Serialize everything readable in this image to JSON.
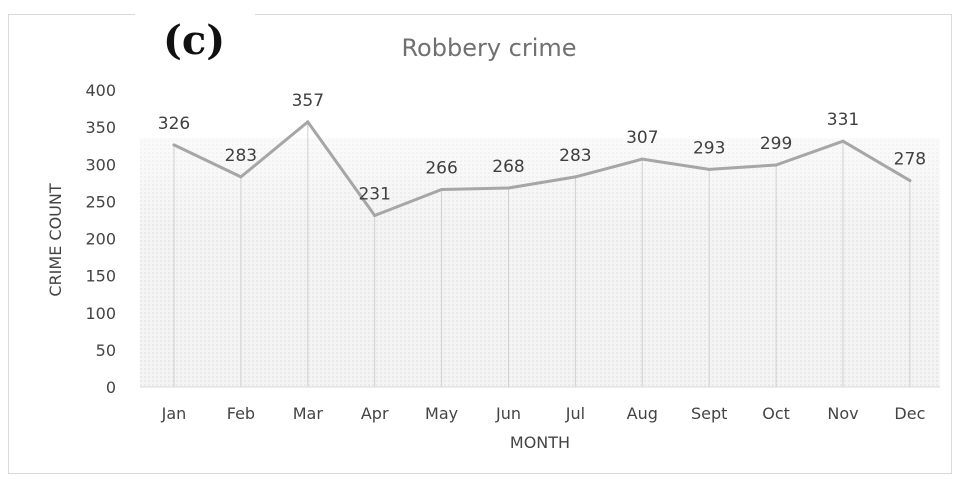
{
  "panel_label": "(c)",
  "chart_data": {
    "type": "line",
    "title": "Robbery crime",
    "xlabel": "MONTH",
    "ylabel": "CRIME COUNT",
    "categories": [
      "Jan",
      "Feb",
      "Mar",
      "Apr",
      "May",
      "Jun",
      "Jul",
      "Aug",
      "Sept",
      "Oct",
      "Nov",
      "Dec"
    ],
    "series": [
      {
        "values": [
          326,
          283,
          357,
          231,
          266,
          268,
          283,
          307,
          293,
          299,
          331,
          278
        ],
        "color": "#a6a6a6",
        "data_labels": [
          "326",
          "283",
          "357",
          "231",
          "266",
          "268",
          "283",
          "307",
          "293",
          "299",
          "331",
          "278"
        ]
      }
    ],
    "ylim": [
      0,
      400
    ],
    "yticks": [
      0,
      50,
      100,
      150,
      200,
      250,
      300,
      350,
      400
    ],
    "ytick_labels": [
      "0",
      "50",
      "100",
      "150",
      "200",
      "250",
      "300",
      "350",
      "400"
    ],
    "grid": "vertical drop lines",
    "legend": "none",
    "fill_color": "#ececec"
  }
}
